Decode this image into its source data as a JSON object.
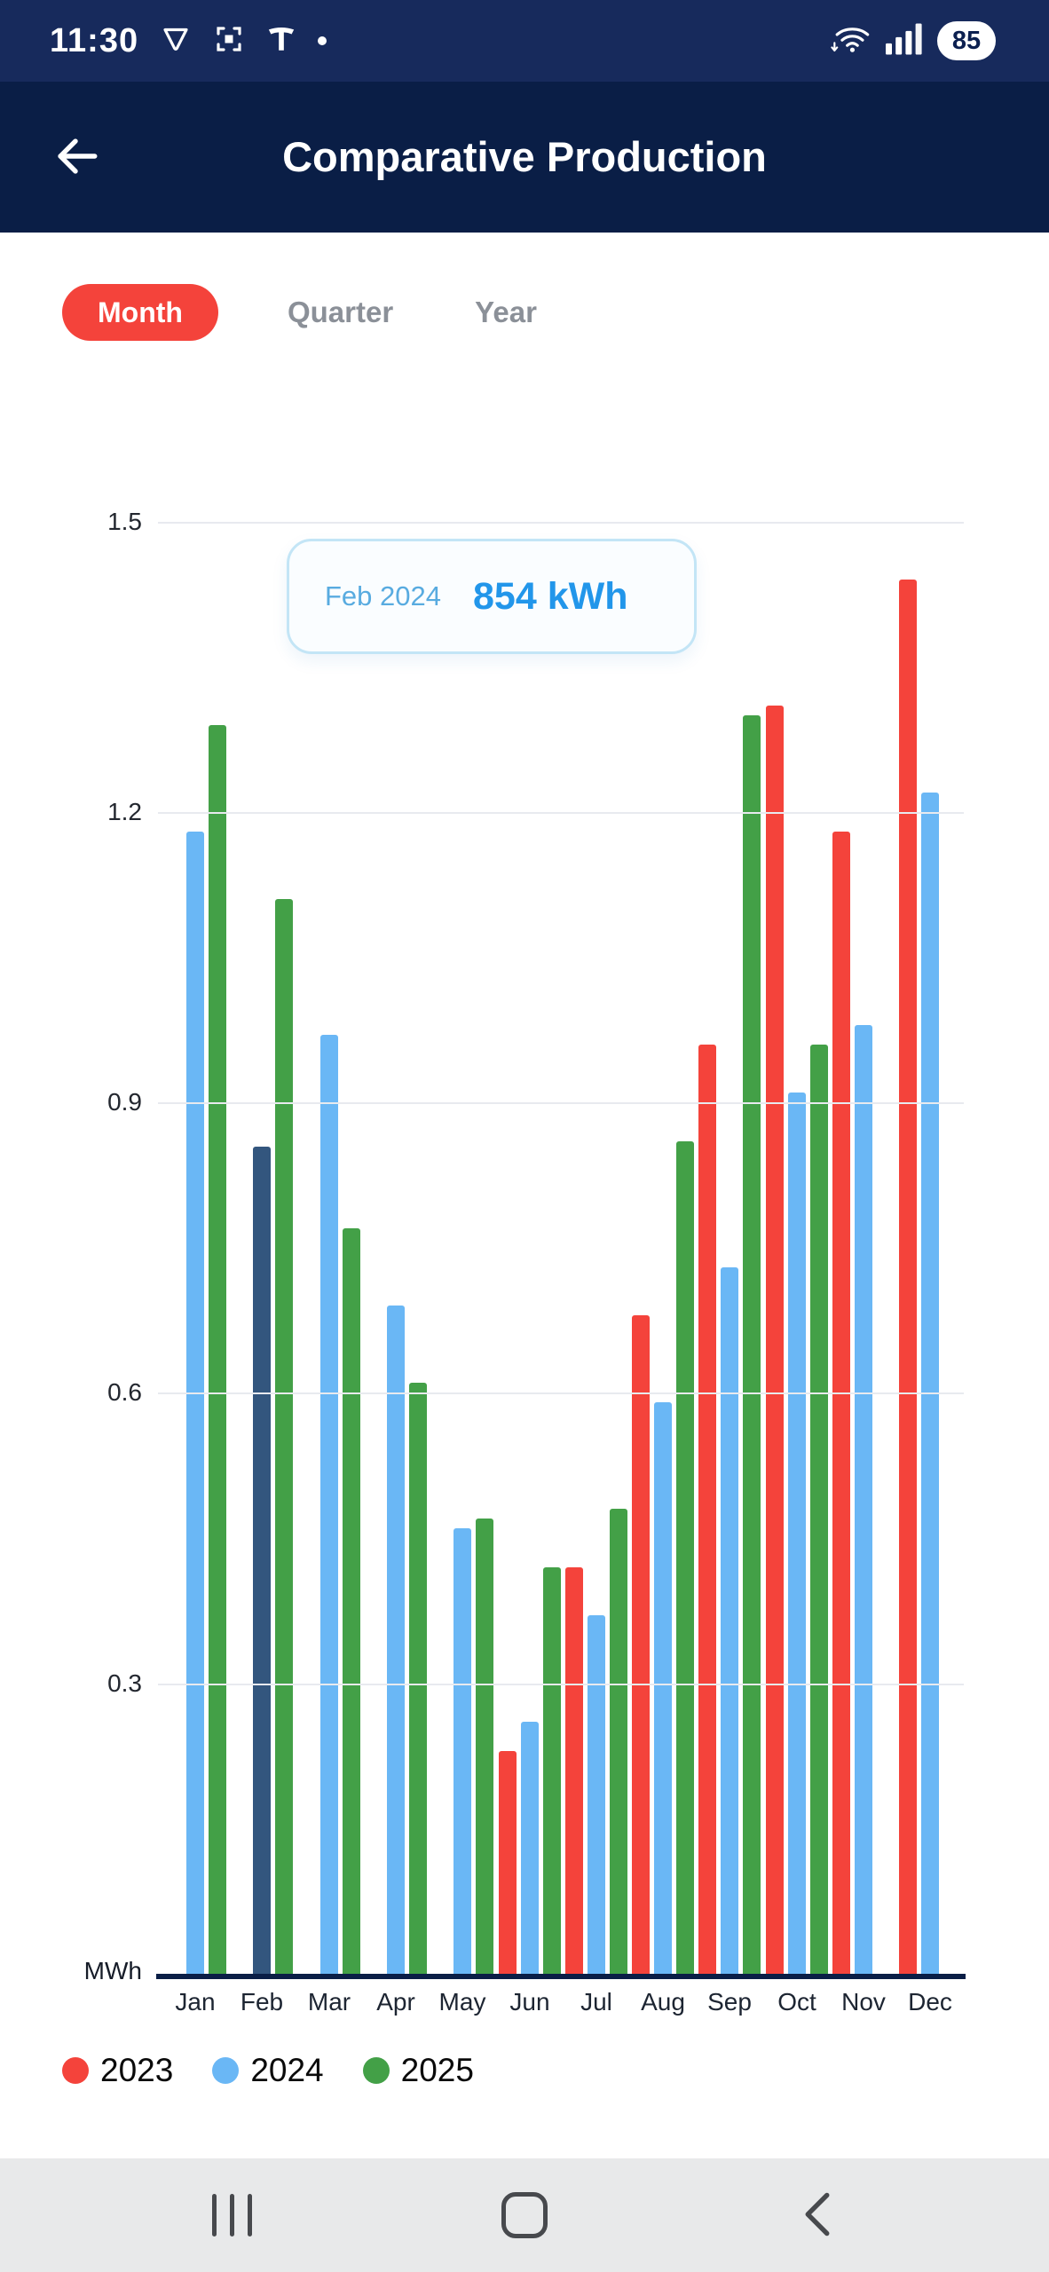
{
  "colors": {
    "accent_red": "#f4433b",
    "header_navy": "#0a1e46",
    "status_bar_navy": "#172a5c",
    "highlight_bar": "#33567e"
  },
  "status_bar": {
    "time": "11:30",
    "battery": "85"
  },
  "app_bar": {
    "title": "Comparative Production"
  },
  "tabs": [
    {
      "label": "Month",
      "selected": true
    },
    {
      "label": "Quarter",
      "selected": false
    },
    {
      "label": "Year",
      "selected": false
    }
  ],
  "tooltip": {
    "label": "Feb 2024",
    "value": "854 kWh"
  },
  "chart_data": {
    "type": "bar",
    "title": "Comparative Production",
    "ylabel": "MWh",
    "ylim": [
      0,
      1.5
    ],
    "yticks": [
      0.3,
      0.6,
      0.9,
      1.2,
      1.5
    ],
    "grid": true,
    "legend_position": "bottom",
    "categories": [
      "Jan",
      "Feb",
      "Mar",
      "Apr",
      "May",
      "Jun",
      "Jul",
      "Aug",
      "Sep",
      "Oct",
      "Nov",
      "Dec"
    ],
    "series": [
      {
        "name": "2023",
        "color": "#f4433b",
        "values": [
          null,
          null,
          null,
          null,
          null,
          0.23,
          0.42,
          0.68,
          0.96,
          1.31,
          1.18,
          1.44
        ]
      },
      {
        "name": "2024",
        "color": "#6ab7f5",
        "values": [
          1.18,
          0.854,
          0.97,
          0.69,
          0.46,
          0.26,
          0.37,
          0.59,
          0.73,
          0.91,
          0.98,
          1.22
        ]
      },
      {
        "name": "2025",
        "color": "#43a047",
        "values": [
          1.29,
          1.11,
          0.77,
          0.61,
          0.47,
          0.42,
          0.48,
          0.86,
          1.3,
          0.96,
          null,
          null
        ]
      }
    ],
    "highlight": {
      "category": "Feb",
      "series": "2024",
      "color": "#33567e",
      "tooltip_value": "854 kWh"
    }
  }
}
